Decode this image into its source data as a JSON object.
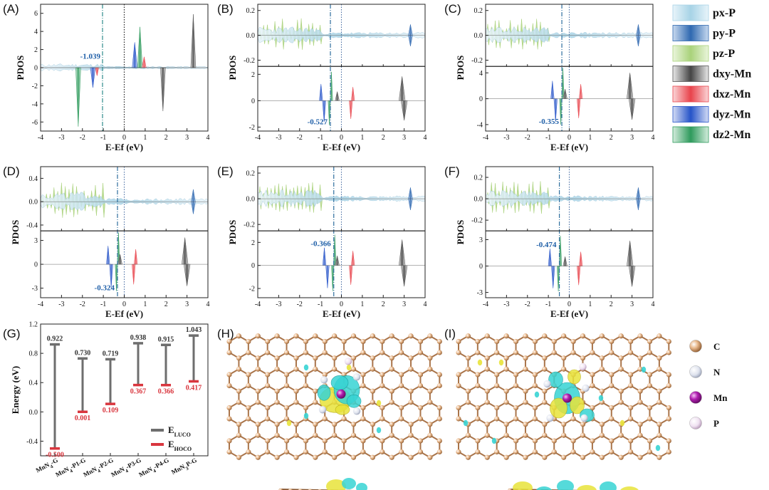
{
  "panel_labels": [
    "(A)",
    "(B)",
    "(C)",
    "(D)",
    "(E)",
    "(F)",
    "(G)",
    "(H)",
    "(I)"
  ],
  "legend": {
    "entries": [
      {
        "label": "px-P",
        "color": "#a7d3e6"
      },
      {
        "label": "py-P",
        "color": "#2f68b0"
      },
      {
        "label": "pz-P",
        "color": "#a9d27a"
      },
      {
        "label": "dxy-Mn",
        "color": "#555555"
      },
      {
        "label": "dxz-Mn",
        "color": "#e8434b"
      },
      {
        "label": "dyz-Mn",
        "color": "#2553c8"
      },
      {
        "label": "dz2-Mn",
        "color": "#2e9a5c"
      }
    ]
  },
  "atom_legend": [
    {
      "label": "C",
      "color": "#c8844f"
    },
    {
      "label": "N",
      "color": "#dfe3ee"
    },
    {
      "label": "Mn",
      "color": "#b01eb0"
    },
    {
      "label": "P",
      "color": "#e9d9ec"
    }
  ],
  "chart_data": [
    {
      "type": "line",
      "panel": "(A)",
      "xlabel": "E-Ef (eV)",
      "ylabel": "PDOS",
      "xlim": [
        -4,
        4
      ],
      "xticks": [
        -4,
        -3,
        -2,
        -1,
        0,
        1,
        2,
        3,
        4
      ],
      "ylim": [
        -7,
        7
      ],
      "yticks": [
        -6,
        -4,
        -2,
        0,
        2,
        4,
        6
      ],
      "band_center": -1.039,
      "band_center_label": "-1.039",
      "fermi_level": 0,
      "peaks": [
        {
          "series": "dz2-Mn",
          "x": -2.2,
          "y": -6.5
        },
        {
          "series": "dyz-Mn",
          "x": -1.5,
          "y": -2.2
        },
        {
          "series": "dyz-Mn",
          "x": 0.5,
          "y": 2.8
        },
        {
          "series": "dz2-Mn",
          "x": 0.75,
          "y": 4.5
        },
        {
          "series": "dxy-Mn",
          "x": 1.85,
          "y": -4.8
        },
        {
          "series": "dxy-Mn",
          "x": 3.3,
          "y": 5.9
        }
      ]
    },
    {
      "type": "line",
      "panel": "(B)",
      "xlabel": "E-Ef (eV)",
      "ylabel": "PDOS",
      "xlim": [
        -4,
        4
      ],
      "xticks": [
        -4,
        -3,
        -2,
        -1,
        0,
        1,
        2,
        3,
        4
      ],
      "top_ylim": [
        -0.25,
        0.25
      ],
      "top_yticks": [
        -0.2,
        0.0,
        0.2
      ],
      "bottom_ylim": [
        -2.3,
        2.6
      ],
      "bottom_yticks": [
        -2,
        0,
        2
      ],
      "band_center": -0.527,
      "band_center_label": "-0.527",
      "fermi_level": 0
    },
    {
      "type": "line",
      "panel": "(C)",
      "xlabel": "E-Ef (eV)",
      "ylabel": "PDOS",
      "xlim": [
        -4,
        4
      ],
      "xticks": [
        -4,
        -3,
        -2,
        -1,
        0,
        1,
        2,
        3,
        4
      ],
      "top_ylim": [
        -0.25,
        0.25
      ],
      "top_yticks": [
        -0.2,
        0.0,
        0.2
      ],
      "bottom_ylim": [
        -5,
        5
      ],
      "bottom_yticks": [
        -4,
        0,
        4
      ],
      "band_center": -0.355,
      "band_center_label": "-0.355",
      "fermi_level": 0
    },
    {
      "type": "line",
      "panel": "(D)",
      "xlabel": "E-Ef (eV)",
      "ylabel": "PDOS",
      "xlim": [
        -4,
        4
      ],
      "xticks": [
        -4,
        -3,
        -2,
        -1,
        0,
        1,
        2,
        3,
        4
      ],
      "top_ylim": [
        -0.5,
        0.6
      ],
      "top_yticks": [
        -0.4,
        0.0,
        0.4
      ],
      "bottom_ylim": [
        -4.2,
        4.2
      ],
      "bottom_yticks": [
        -3,
        0,
        3
      ],
      "band_center": -0.324,
      "band_center_label": "-0.324",
      "fermi_level": 0
    },
    {
      "type": "line",
      "panel": "(E)",
      "xlabel": "E-Ef (eV)",
      "ylabel": "PDOS",
      "xlim": [
        -4,
        4
      ],
      "xticks": [
        -4,
        -3,
        -2,
        -1,
        0,
        1,
        2,
        3,
        4
      ],
      "top_ylim": [
        -0.25,
        0.25
      ],
      "top_yticks": [
        -0.2,
        0.0,
        0.2
      ],
      "bottom_ylim": [
        -2.8,
        3.0
      ],
      "bottom_yticks": [
        -2,
        0,
        2
      ],
      "band_center": -0.366,
      "band_center_label": "-0.366",
      "fermi_level": 0
    },
    {
      "type": "line",
      "panel": "(F)",
      "xlabel": "E-Ef (eV)",
      "ylabel": "PDOS",
      "xlim": [
        -4,
        4
      ],
      "xticks": [
        -4,
        -3,
        -2,
        -1,
        0,
        1,
        2,
        3,
        4
      ],
      "top_ylim": [
        -0.3,
        0.3
      ],
      "top_yticks": [
        -0.2,
        0.0,
        0.2
      ],
      "bottom_ylim": [
        -3.6,
        4.0
      ],
      "bottom_yticks": [
        -3,
        0,
        3
      ],
      "band_center": -0.474,
      "band_center_label": "-0.474",
      "fermi_level": 0
    },
    {
      "type": "bar",
      "panel": "(G)",
      "ylabel": "Energy (eV)",
      "ylim": [
        -0.6,
        1.2
      ],
      "yticks": [
        -0.4,
        0.0,
        0.4,
        0.8,
        1.2
      ],
      "categories": [
        "MnN4-G",
        "MnN4-P1-G",
        "MnN4-P2-G",
        "MnN4-P3-G",
        "MnN4-P4-G",
        "MnN3P-G"
      ],
      "category_labels": [
        {
          "base": "MnN",
          "sub": "4",
          "rest": "-G"
        },
        {
          "base": "MnN",
          "sub": "4",
          "rest": "-P1-G"
        },
        {
          "base": "MnN",
          "sub": "4",
          "rest": "-P2-G"
        },
        {
          "base": "MnN",
          "sub": "4",
          "rest": "-P3-G"
        },
        {
          "base": "MnN",
          "sub": "4",
          "rest": "-P4-G"
        },
        {
          "base": "MnN",
          "sub": "3",
          "rest": "P-G"
        }
      ],
      "series": [
        {
          "name": "E_LUCO",
          "values": [
            0.922,
            0.73,
            0.719,
            0.938,
            0.915,
            1.043
          ],
          "labels": [
            "0.922",
            "0.730",
            "0.719",
            "0.938",
            "0.915",
            "1.043"
          ],
          "color": "#6e6e6e"
        },
        {
          "name": "E_HOCO",
          "values": [
            -0.5,
            0.001,
            0.109,
            0.367,
            0.366,
            0.417
          ],
          "labels": [
            "-0.500",
            "0.001",
            "0.109",
            "0.367",
            "0.366",
            "0.417"
          ],
          "color": "#d9363e"
        }
      ],
      "legend_items": [
        {
          "base": "E",
          "sub": "LUCO",
          "color": "#6e6e6e"
        },
        {
          "base": "E",
          "sub": "HOCO",
          "color": "#d9363e"
        }
      ],
      "legend_position": "bottom-right"
    }
  ]
}
